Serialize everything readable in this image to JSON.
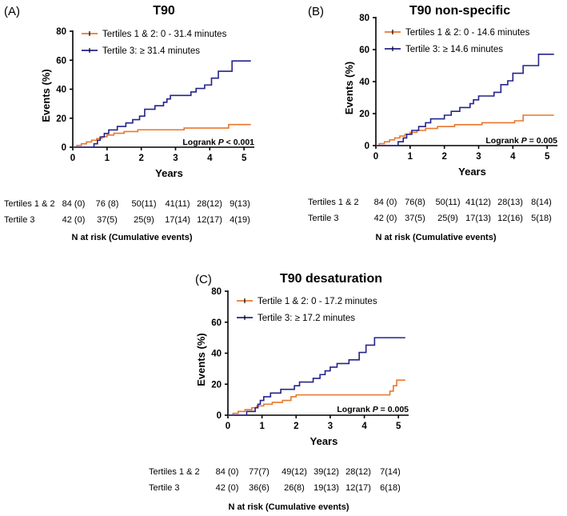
{
  "colors": {
    "tertiles12": "#e8772e",
    "tertile3": "#23238a"
  },
  "chart_data": [
    {
      "type": "line",
      "panel_label": "(A)",
      "title": "T90",
      "xlabel": "Years",
      "ylabel": "Events (%)",
      "xlim": [
        0,
        5.3
      ],
      "ylim": [
        0,
        80
      ],
      "xticks": [
        0,
        1,
        2,
        3,
        4,
        5
      ],
      "yticks": [
        0,
        20,
        40,
        60,
        80
      ],
      "annotation": {
        "prefix": "Logrank ",
        "p": "P",
        "suffix": " < 0.001"
      },
      "series": [
        {
          "name": "Tertiles 1 & 2: 0 - 31.4 minutes",
          "color_key": "tertiles12",
          "points": [
            [
              0,
              0
            ],
            [
              0.12,
              1.2
            ],
            [
              0.25,
              2.4
            ],
            [
              0.4,
              3.6
            ],
            [
              0.55,
              4.8
            ],
            [
              0.7,
              6
            ],
            [
              0.85,
              7.2
            ],
            [
              1.0,
              8.4
            ],
            [
              1.2,
              9.6
            ],
            [
              1.5,
              10.8
            ],
            [
              1.9,
              12
            ],
            [
              3.25,
              13.2
            ],
            [
              4.55,
              15.6
            ],
            [
              5.2,
              15.6
            ]
          ]
        },
        {
          "name": "Tertile 3: ≥ 31.4 minutes",
          "color_key": "tertile3",
          "points": [
            [
              0,
              0
            ],
            [
              0.4,
              0
            ],
            [
              0.62,
              2.4
            ],
            [
              0.72,
              4.8
            ],
            [
              0.8,
              7.1
            ],
            [
              0.92,
              9.5
            ],
            [
              1.05,
              11.9
            ],
            [
              1.3,
              14.3
            ],
            [
              1.55,
              16.7
            ],
            [
              1.75,
              19
            ],
            [
              1.95,
              21.4
            ],
            [
              2.1,
              26.2
            ],
            [
              2.4,
              28.6
            ],
            [
              2.65,
              31
            ],
            [
              2.75,
              33.3
            ],
            [
              2.85,
              35.7
            ],
            [
              3.25,
              35.7
            ],
            [
              3.45,
              38.1
            ],
            [
              3.6,
              40.5
            ],
            [
              3.85,
              42.9
            ],
            [
              4.05,
              47.6
            ],
            [
              4.25,
              52.4
            ],
            [
              4.65,
              59.5
            ],
            [
              5.2,
              59.5
            ]
          ]
        }
      ],
      "risk_table": {
        "caption": "N at risk (Cumulative events)",
        "rows": [
          {
            "label": "Tertiles 1 & 2",
            "values": [
              "84 (0)",
              "76 (8)",
              "50(11)",
              "41(11)",
              "28(12)",
              "9(13)"
            ]
          },
          {
            "label": "Tertile 3",
            "values": [
              "42 (0)",
              "37(5)",
              "25(9)",
              "17(14)",
              "12(17)",
              "4(19)"
            ]
          }
        ]
      }
    },
    {
      "type": "line",
      "panel_label": "(B)",
      "title": "T90 non-specific",
      "xlabel": "Years",
      "ylabel": "Events (%)",
      "xlim": [
        0,
        5.3
      ],
      "ylim": [
        0,
        80
      ],
      "xticks": [
        0,
        1,
        2,
        3,
        4,
        5
      ],
      "yticks": [
        0,
        20,
        40,
        60,
        80
      ],
      "annotation": {
        "prefix": "Logrank ",
        "p": "P",
        "suffix": " = 0.005"
      },
      "series": [
        {
          "name": "Tertiles 1 & 2: 0 - 14.6 minutes",
          "color_key": "tertiles12",
          "points": [
            [
              0,
              0
            ],
            [
              0.1,
              1.2
            ],
            [
              0.25,
              2.4
            ],
            [
              0.4,
              3.6
            ],
            [
              0.55,
              4.8
            ],
            [
              0.7,
              6
            ],
            [
              0.85,
              7.1
            ],
            [
              1.0,
              8.3
            ],
            [
              1.2,
              9.5
            ],
            [
              1.45,
              10.7
            ],
            [
              1.8,
              11.9
            ],
            [
              2.3,
              13.1
            ],
            [
              3.1,
              14.3
            ],
            [
              4.05,
              15.5
            ],
            [
              4.3,
              19
            ],
            [
              5.2,
              19
            ]
          ]
        },
        {
          "name": "Tertile 3: ≥ 14.6 minutes",
          "color_key": "tertile3",
          "points": [
            [
              0,
              0
            ],
            [
              0.45,
              0
            ],
            [
              0.65,
              2.4
            ],
            [
              0.8,
              4.8
            ],
            [
              0.9,
              7.1
            ],
            [
              1.05,
              9.5
            ],
            [
              1.25,
              11.9
            ],
            [
              1.45,
              14.3
            ],
            [
              1.6,
              16.7
            ],
            [
              2.0,
              19
            ],
            [
              2.2,
              21.4
            ],
            [
              2.45,
              23.8
            ],
            [
              2.75,
              26.2
            ],
            [
              2.85,
              28.6
            ],
            [
              3.0,
              31
            ],
            [
              3.45,
              33.3
            ],
            [
              3.65,
              38.1
            ],
            [
              3.85,
              40.5
            ],
            [
              4.0,
              45.2
            ],
            [
              4.3,
              50
            ],
            [
              4.75,
              57.1
            ],
            [
              5.2,
              57.1
            ]
          ]
        }
      ],
      "risk_table": {
        "caption": "N at risk (Cumulative events)",
        "rows": [
          {
            "label": "Tertiles 1 & 2",
            "values": [
              "84 (0)",
              "76(8)",
              "50(11)",
              "41(12)",
              "28(13)",
              "8(14)"
            ]
          },
          {
            "label": "Tertile 3",
            "values": [
              "42 (0)",
              "37(5)",
              "25(9)",
              "17(13)",
              "12(16)",
              "5(18)"
            ]
          }
        ]
      }
    },
    {
      "type": "line",
      "panel_label": "(C)",
      "title": "T90 desaturation",
      "xlabel": "Years",
      "ylabel": "Events (%)",
      "xlim": [
        0,
        5.3
      ],
      "ylim": [
        0,
        80
      ],
      "xticks": [
        0,
        1,
        2,
        3,
        4,
        5
      ],
      "yticks": [
        0,
        20,
        40,
        60,
        80
      ],
      "annotation": {
        "prefix": "Logrank ",
        "p": "P",
        "suffix": " = 0.005"
      },
      "series": [
        {
          "name": "Tertile 1 & 2: 0 - 17.2 minutes",
          "color_key": "tertiles12",
          "points": [
            [
              0,
              0
            ],
            [
              0.15,
              1.2
            ],
            [
              0.3,
              2.4
            ],
            [
              0.5,
              3.6
            ],
            [
              0.7,
              4.8
            ],
            [
              0.85,
              6
            ],
            [
              1.05,
              7.1
            ],
            [
              1.3,
              8.3
            ],
            [
              1.6,
              9.5
            ],
            [
              1.85,
              11.9
            ],
            [
              2.0,
              13.1
            ],
            [
              4.6,
              13.1
            ],
            [
              4.75,
              15.5
            ],
            [
              4.85,
              19
            ],
            [
              4.95,
              22.6
            ],
            [
              5.2,
              22.6
            ]
          ]
        },
        {
          "name": "Tertile 3: ≥ 17.2 minutes",
          "color_key": "tertile3",
          "points": [
            [
              0,
              0
            ],
            [
              0.3,
              0
            ],
            [
              0.55,
              2.4
            ],
            [
              0.8,
              4.8
            ],
            [
              0.88,
              7.1
            ],
            [
              0.95,
              9.5
            ],
            [
              1.05,
              11.9
            ],
            [
              1.25,
              14.3
            ],
            [
              1.55,
              16.7
            ],
            [
              1.95,
              19
            ],
            [
              2.1,
              21.4
            ],
            [
              2.5,
              23.8
            ],
            [
              2.7,
              26.2
            ],
            [
              2.85,
              28.6
            ],
            [
              3.0,
              31
            ],
            [
              3.2,
              33.3
            ],
            [
              3.55,
              35.7
            ],
            [
              3.85,
              40.5
            ],
            [
              4.05,
              45.2
            ],
            [
              4.3,
              50
            ],
            [
              5.2,
              50
            ]
          ]
        }
      ],
      "risk_table": {
        "caption": "N at risk (Cumulative events)",
        "rows": [
          {
            "label": "Tertiles 1 & 2",
            "values": [
              "84 (0)",
              "77(7)",
              "49(12)",
              "39(12)",
              "28(12)",
              "7(14)"
            ]
          },
          {
            "label": "Tertile 3",
            "values": [
              "42 (0)",
              "36(6)",
              "26(8)",
              "19(13)",
              "12(17)",
              "6(18)"
            ]
          }
        ]
      }
    }
  ]
}
